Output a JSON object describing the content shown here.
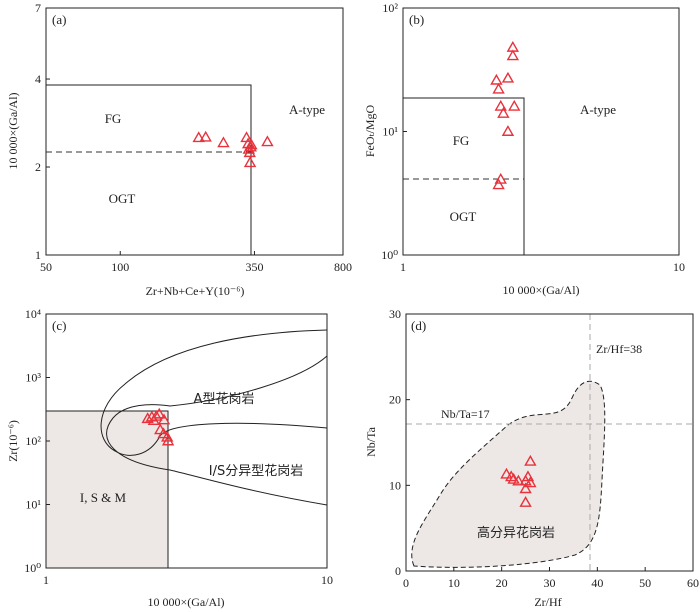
{
  "colors": {
    "marker": "#e8323c",
    "axis": "#222222",
    "fill": "#ede8e6",
    "guide": "#aaaaaa"
  },
  "chart_data": [
    {
      "id": "a",
      "panel_label": "(a)",
      "type": "scatter",
      "xscale": "log",
      "yscale": "log",
      "xlim": [
        50,
        800
      ],
      "ylim": [
        1,
        7
      ],
      "xticks": [
        50,
        100,
        350,
        800
      ],
      "xtick_labels": [
        "50",
        "100",
        "350",
        "800"
      ],
      "yticks": [
        1,
        2,
        4,
        7
      ],
      "ytick_labels": [
        "1",
        "2",
        "4",
        "7"
      ],
      "xlabel": "Zr+Nb+Ce+Y(10⁻⁶)",
      "ylabel": "10 000×(Ga/Al)",
      "regions": [
        {
          "label": "FG",
          "x": 105,
          "y": 3.0
        },
        {
          "label": "OGT",
          "x": 105,
          "y": 1.55
        },
        {
          "label": "A-type",
          "x": 520,
          "y": 3.25
        }
      ],
      "marker": "triangle",
      "points": [
        {
          "x": 208,
          "y": 2.52
        },
        {
          "x": 222,
          "y": 2.53
        },
        {
          "x": 262,
          "y": 2.42
        },
        {
          "x": 325,
          "y": 2.52
        },
        {
          "x": 330,
          "y": 2.4
        },
        {
          "x": 332,
          "y": 2.3
        },
        {
          "x": 335,
          "y": 2.24
        },
        {
          "x": 338,
          "y": 2.34
        },
        {
          "x": 340,
          "y": 2.38
        },
        {
          "x": 336,
          "y": 2.07
        },
        {
          "x": 395,
          "y": 2.44
        }
      ]
    },
    {
      "id": "b",
      "panel_label": "(b)",
      "type": "scatter",
      "xscale": "log",
      "yscale": "log",
      "xlim": [
        1,
        10
      ],
      "ylim": [
        1,
        100
      ],
      "xticks": [
        1,
        10
      ],
      "xtick_labels": [
        "1",
        "10"
      ],
      "yticks": [
        1,
        10,
        100
      ],
      "ytick_labels": [
        "10⁰",
        "10¹",
        "10²"
      ],
      "xlabel": "10 000×(Ga/Al)",
      "ylabel": "FeOₜ/MgO",
      "regions": [
        {
          "label": "FG",
          "x": 1.75,
          "y": 8.0
        },
        {
          "label": "OGT",
          "x": 1.75,
          "y": 2.3
        },
        {
          "label": "A-type",
          "x": 5.4,
          "y": 15
        }
      ],
      "marker": "triangle",
      "points": [
        {
          "x": 2.5,
          "y": 48
        },
        {
          "x": 2.5,
          "y": 41
        },
        {
          "x": 2.18,
          "y": 26
        },
        {
          "x": 2.22,
          "y": 22
        },
        {
          "x": 2.4,
          "y": 27
        },
        {
          "x": 2.26,
          "y": 16
        },
        {
          "x": 2.31,
          "y": 14
        },
        {
          "x": 2.53,
          "y": 16
        },
        {
          "x": 2.4,
          "y": 10
        },
        {
          "x": 2.26,
          "y": 4.1
        },
        {
          "x": 2.22,
          "y": 3.7
        }
      ]
    },
    {
      "id": "c",
      "panel_label": "(c)",
      "type": "scatter",
      "xscale": "log",
      "yscale": "log",
      "xlim": [
        1,
        10
      ],
      "ylim": [
        1,
        10000
      ],
      "xticks": [
        1,
        10
      ],
      "xtick_labels": [
        "1",
        "10"
      ],
      "yticks": [
        1,
        10,
        100,
        1000,
        10000
      ],
      "ytick_labels": [
        "10⁰",
        "10¹",
        "10²",
        "10³",
        "10⁴"
      ],
      "xlabel": "10 000×(Ga/Al)",
      "ylabel": "Zr(10⁻⁶)",
      "regions": [
        {
          "label": "A型花岗岩",
          "x": 4.2,
          "y": 850
        },
        {
          "label": "I/S分异型花岗岩",
          "x": 5.2,
          "y": 45
        },
        {
          "label": "I, S & M",
          "x": 1.55,
          "y": 8
        }
      ],
      "marker": "triangle",
      "points": [
        {
          "x": 2.3,
          "y": 225
        },
        {
          "x": 2.38,
          "y": 238
        },
        {
          "x": 2.42,
          "y": 210
        },
        {
          "x": 2.47,
          "y": 245
        },
        {
          "x": 2.53,
          "y": 265
        },
        {
          "x": 2.63,
          "y": 215
        },
        {
          "x": 2.55,
          "y": 150
        },
        {
          "x": 2.62,
          "y": 130
        },
        {
          "x": 2.7,
          "y": 115
        },
        {
          "x": 2.72,
          "y": 100
        }
      ]
    },
    {
      "id": "d",
      "panel_label": "(d)",
      "type": "scatter",
      "xscale": "linear",
      "yscale": "linear",
      "xlim": [
        0,
        60
      ],
      "ylim": [
        0,
        30
      ],
      "xticks": [
        0,
        10,
        20,
        30,
        40,
        50,
        60
      ],
      "xtick_labels": [
        "0",
        "10",
        "20",
        "30",
        "40",
        "50",
        "60"
      ],
      "yticks": [
        0,
        10,
        20,
        30
      ],
      "ytick_labels": [
        "0",
        "10",
        "20",
        "30"
      ],
      "xlabel": "Zr/Hf",
      "ylabel": "Nb/Ta",
      "guides": [
        {
          "label": "Zr/Hf=38"
        },
        {
          "label": "Nb/Ta=17"
        }
      ],
      "regions": [
        {
          "label": "高分异花岗岩",
          "x": 24,
          "y": 4.4
        }
      ],
      "marker": "triangle",
      "points": [
        {
          "x": 21,
          "y": 11.3
        },
        {
          "x": 22,
          "y": 11.0
        },
        {
          "x": 22.5,
          "y": 10.7
        },
        {
          "x": 23.5,
          "y": 10.5
        },
        {
          "x": 25,
          "y": 10.5
        },
        {
          "x": 25.5,
          "y": 11.0
        },
        {
          "x": 26,
          "y": 12.8
        },
        {
          "x": 26,
          "y": 10.3
        },
        {
          "x": 25,
          "y": 9.6
        },
        {
          "x": 25,
          "y": 8.0
        }
      ]
    }
  ]
}
